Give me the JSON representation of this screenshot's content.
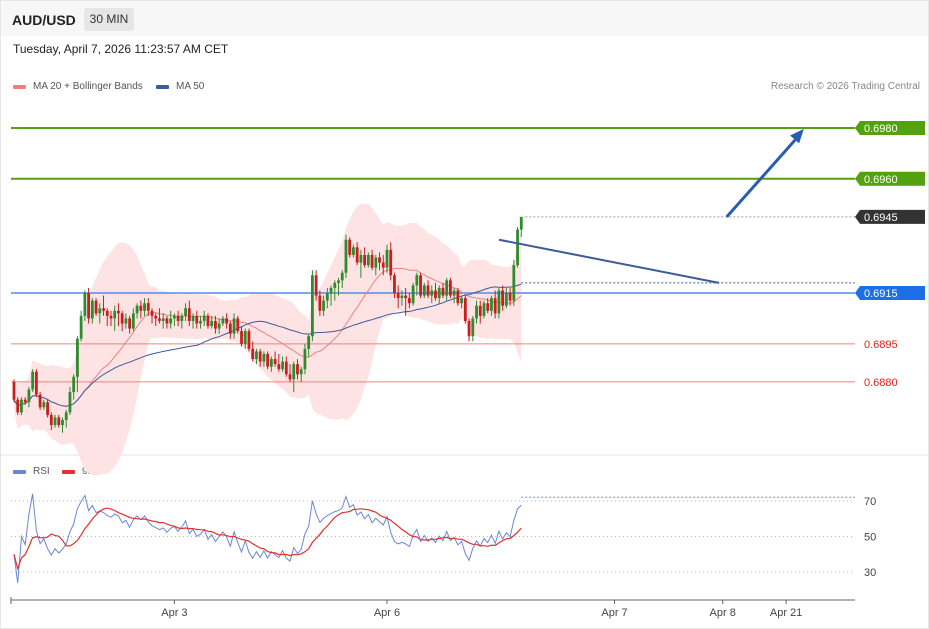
{
  "header": {
    "symbol": "AUD/USD",
    "timeframe": "30 MIN",
    "datetime": "Tuesday, April 7, 2026 11:23:57 AM CET"
  },
  "legend": {
    "bb_label": "MA 20 + Bollinger Bands",
    "ma50_label": "MA 50",
    "copyright": "Research © 2026 Trading Central"
  },
  "rsi_legend": {
    "rsi_label": "RSI",
    "ma_label": "9MA"
  },
  "colors": {
    "bb_fill": "#fde3e3",
    "ma20": "#f08080",
    "ma50": "#3d5a99",
    "up": "#2e8b2e",
    "down": "#c81e1e",
    "resistance": "#54a10f",
    "pivot": "#4b8df0",
    "support": "#f08080",
    "arrow": "#2a5db0",
    "last": "#333333",
    "rsi": "#6b86d6",
    "rsi_ma": "#e03030"
  },
  "chart_data": [
    {
      "type": "candlestick",
      "title": "AUD/USD",
      "timeframe": "30 MIN",
      "y_range": [
        0.6852,
        0.6993
      ],
      "x_tick_labels": [
        {
          "label": "Apr 3",
          "bar": 43
        },
        {
          "label": "Apr 6",
          "bar": 100
        },
        {
          "label": "Apr 7",
          "bar": 161
        },
        {
          "label": "Apr 8",
          "bar": 190
        },
        {
          "label": "Apr 21",
          "bar": 207
        }
      ],
      "levels": [
        {
          "value": 0.698,
          "label": "0.6980",
          "role": "resistance"
        },
        {
          "value": 0.696,
          "label": "0.6960",
          "role": "resistance"
        },
        {
          "value": 0.6945,
          "label": "0.6945",
          "role": "last"
        },
        {
          "value": 0.6915,
          "label": "0.6915",
          "role": "pivot"
        },
        {
          "value": 0.6895,
          "label": "0.6895",
          "role": "support"
        },
        {
          "value": 0.688,
          "label": "0.6880",
          "role": "support"
        }
      ],
      "trendline": {
        "from": [
          130,
          0.6936
        ],
        "to": [
          189,
          0.6919
        ]
      },
      "projection_arrow": {
        "from": [
          190,
          0.6945
        ],
        "to": [
          208,
          0.6982
        ]
      },
      "ohlc": [
        [
          0.688,
          0.6881,
          0.6872,
          0.6873
        ],
        [
          0.6873,
          0.6874,
          0.6867,
          0.6868
        ],
        [
          0.6868,
          0.6874,
          0.6867,
          0.6873
        ],
        [
          0.6873,
          0.6874,
          0.6871,
          0.6872
        ],
        [
          0.6872,
          0.6878,
          0.687,
          0.6877
        ],
        [
          0.6877,
          0.6885,
          0.6876,
          0.6884
        ],
        [
          0.6884,
          0.6885,
          0.6874,
          0.6875
        ],
        [
          0.6875,
          0.6876,
          0.6869,
          0.687
        ],
        [
          0.687,
          0.6873,
          0.6869,
          0.6872
        ],
        [
          0.6872,
          0.6873,
          0.6866,
          0.6867
        ],
        [
          0.6867,
          0.6868,
          0.6861,
          0.6863
        ],
        [
          0.6863,
          0.6867,
          0.6862,
          0.6866
        ],
        [
          0.6866,
          0.6867,
          0.6862,
          0.6863
        ],
        [
          0.6863,
          0.6866,
          0.686,
          0.6865
        ],
        [
          0.6865,
          0.6869,
          0.6862,
          0.6868
        ],
        [
          0.6868,
          0.6878,
          0.6867,
          0.6876
        ],
        [
          0.6876,
          0.6883,
          0.6873,
          0.6882
        ],
        [
          0.6882,
          0.6898,
          0.6876,
          0.6897
        ],
        [
          0.6897,
          0.6908,
          0.6896,
          0.6906
        ],
        [
          0.6906,
          0.6916,
          0.6904,
          0.6915
        ],
        [
          0.6915,
          0.6917,
          0.6903,
          0.6905
        ],
        [
          0.6905,
          0.6913,
          0.6903,
          0.6912
        ],
        [
          0.6912,
          0.6913,
          0.6906,
          0.6907
        ],
        [
          0.6907,
          0.6911,
          0.6903,
          0.6909
        ],
        [
          0.6909,
          0.6914,
          0.6906,
          0.6908
        ],
        [
          0.6908,
          0.6909,
          0.6902,
          0.6906
        ],
        [
          0.6906,
          0.6908,
          0.6902,
          0.6905
        ],
        [
          0.6905,
          0.691,
          0.69,
          0.6908
        ],
        [
          0.6908,
          0.6911,
          0.6902,
          0.6907
        ],
        [
          0.6907,
          0.6908,
          0.69,
          0.6903
        ],
        [
          0.6903,
          0.6907,
          0.6901,
          0.6905
        ],
        [
          0.6905,
          0.6906,
          0.6899,
          0.6901
        ],
        [
          0.6901,
          0.6909,
          0.69,
          0.6907
        ],
        [
          0.6907,
          0.6911,
          0.6905,
          0.691
        ],
        [
          0.691,
          0.6912,
          0.6905,
          0.6908
        ],
        [
          0.6908,
          0.6913,
          0.6906,
          0.6911
        ],
        [
          0.6911,
          0.6913,
          0.6906,
          0.6908
        ],
        [
          0.6908,
          0.6909,
          0.6903,
          0.6906
        ],
        [
          0.6906,
          0.6907,
          0.6902,
          0.6905
        ],
        [
          0.6905,
          0.6909,
          0.6903,
          0.6904
        ],
        [
          0.6904,
          0.6907,
          0.6901,
          0.6905
        ],
        [
          0.6905,
          0.6906,
          0.6901,
          0.6903
        ],
        [
          0.6903,
          0.6908,
          0.6901,
          0.6905
        ],
        [
          0.6905,
          0.6907,
          0.6902,
          0.6906
        ],
        [
          0.6906,
          0.6908,
          0.6902,
          0.6904
        ],
        [
          0.6904,
          0.6907,
          0.6901,
          0.6906
        ],
        [
          0.6906,
          0.6911,
          0.6904,
          0.6909
        ],
        [
          0.6909,
          0.6912,
          0.6902,
          0.6904
        ],
        [
          0.6904,
          0.6907,
          0.6901,
          0.6906
        ],
        [
          0.6906,
          0.6908,
          0.6901,
          0.6903
        ],
        [
          0.6903,
          0.6906,
          0.6901,
          0.6904
        ],
        [
          0.6904,
          0.6908,
          0.6902,
          0.6906
        ],
        [
          0.6906,
          0.6907,
          0.6901,
          0.6902
        ],
        [
          0.6902,
          0.6906,
          0.6901,
          0.6904
        ],
        [
          0.6904,
          0.6906,
          0.6899,
          0.6901
        ],
        [
          0.6901,
          0.6905,
          0.6899,
          0.6903
        ],
        [
          0.6903,
          0.6906,
          0.6902,
          0.6905
        ],
        [
          0.6905,
          0.6907,
          0.6901,
          0.6903
        ],
        [
          0.6903,
          0.6904,
          0.6897,
          0.6899
        ],
        [
          0.6899,
          0.6907,
          0.6897,
          0.6905
        ],
        [
          0.6905,
          0.6906,
          0.6899,
          0.69
        ],
        [
          0.69,
          0.6902,
          0.6894,
          0.6895
        ],
        [
          0.6895,
          0.6901,
          0.6893,
          0.69
        ],
        [
          0.69,
          0.6901,
          0.6892,
          0.6893
        ],
        [
          0.6893,
          0.6896,
          0.6888,
          0.6889
        ],
        [
          0.6889,
          0.6893,
          0.6887,
          0.6892
        ],
        [
          0.6892,
          0.6893,
          0.6886,
          0.6888
        ],
        [
          0.6888,
          0.6892,
          0.6886,
          0.6891
        ],
        [
          0.6891,
          0.6892,
          0.6885,
          0.6886
        ],
        [
          0.6886,
          0.689,
          0.6884,
          0.6889
        ],
        [
          0.6889,
          0.6892,
          0.6886,
          0.6887
        ],
        [
          0.6887,
          0.6891,
          0.6884,
          0.6885
        ],
        [
          0.6885,
          0.689,
          0.6884,
          0.6888
        ],
        [
          0.6888,
          0.689,
          0.6882,
          0.6883
        ],
        [
          0.6883,
          0.6887,
          0.688,
          0.6881
        ],
        [
          0.6881,
          0.6888,
          0.6876,
          0.6887
        ],
        [
          0.6887,
          0.6889,
          0.6881,
          0.6883
        ],
        [
          0.6883,
          0.6886,
          0.688,
          0.6885
        ],
        [
          0.6885,
          0.6895,
          0.6883,
          0.6893
        ],
        [
          0.6893,
          0.6899,
          0.689,
          0.6898
        ],
        [
          0.6898,
          0.6924,
          0.6896,
          0.6922
        ],
        [
          0.6922,
          0.6924,
          0.6912,
          0.6914
        ],
        [
          0.6914,
          0.6916,
          0.6906,
          0.6908
        ],
        [
          0.6908,
          0.6914,
          0.6906,
          0.6912
        ],
        [
          0.6912,
          0.6917,
          0.6909,
          0.6915
        ],
        [
          0.6915,
          0.6918,
          0.691,
          0.6917
        ],
        [
          0.6917,
          0.692,
          0.6912,
          0.6919
        ],
        [
          0.6919,
          0.6921,
          0.6914,
          0.692
        ],
        [
          0.692,
          0.6924,
          0.6917,
          0.6923
        ],
        [
          0.6923,
          0.6938,
          0.6921,
          0.6936
        ],
        [
          0.6936,
          0.6937,
          0.6929,
          0.693
        ],
        [
          0.693,
          0.6934,
          0.6929,
          0.6933
        ],
        [
          0.6933,
          0.6935,
          0.6926,
          0.6927
        ],
        [
          0.6927,
          0.6932,
          0.6921,
          0.693
        ],
        [
          0.693,
          0.6933,
          0.6925,
          0.6926
        ],
        [
          0.6926,
          0.6931,
          0.6925,
          0.693
        ],
        [
          0.693,
          0.6932,
          0.6924,
          0.6925
        ],
        [
          0.6925,
          0.693,
          0.6922,
          0.6929
        ],
        [
          0.6929,
          0.6931,
          0.6924,
          0.6927
        ],
        [
          0.6927,
          0.693,
          0.6922,
          0.6925
        ],
        [
          0.6925,
          0.6934,
          0.6923,
          0.6932
        ],
        [
          0.6932,
          0.6935,
          0.692,
          0.6922
        ],
        [
          0.6922,
          0.6923,
          0.6913,
          0.6915
        ],
        [
          0.6915,
          0.6918,
          0.6909,
          0.6913
        ],
        [
          0.6913,
          0.6916,
          0.691,
          0.6914
        ],
        [
          0.6914,
          0.6917,
          0.6906,
          0.6913
        ],
        [
          0.6913,
          0.6915,
          0.6909,
          0.6911
        ],
        [
          0.6911,
          0.6919,
          0.691,
          0.6918
        ],
        [
          0.6918,
          0.6923,
          0.6914,
          0.6922
        ],
        [
          0.6922,
          0.6923,
          0.6913,
          0.6914
        ],
        [
          0.6914,
          0.6919,
          0.6913,
          0.6918
        ],
        [
          0.6918,
          0.692,
          0.6913,
          0.6914
        ],
        [
          0.6914,
          0.6918,
          0.6911,
          0.6916
        ],
        [
          0.6916,
          0.6919,
          0.6912,
          0.6913
        ],
        [
          0.6913,
          0.6918,
          0.6911,
          0.6917
        ],
        [
          0.6917,
          0.6919,
          0.6913,
          0.6914
        ],
        [
          0.6914,
          0.6921,
          0.6912,
          0.692
        ],
        [
          0.692,
          0.6921,
          0.6913,
          0.6914
        ],
        [
          0.6914,
          0.6917,
          0.6911,
          0.6916
        ],
        [
          0.6916,
          0.6917,
          0.691,
          0.6911
        ],
        [
          0.6911,
          0.6914,
          0.6909,
          0.6913
        ],
        [
          0.6913,
          0.6914,
          0.6903,
          0.6904
        ],
        [
          0.6904,
          0.6905,
          0.6896,
          0.6898
        ],
        [
          0.6898,
          0.6906,
          0.6896,
          0.6905
        ],
        [
          0.6905,
          0.6912,
          0.6903,
          0.691
        ],
        [
          0.691,
          0.6912,
          0.6903,
          0.6906
        ],
        [
          0.6906,
          0.6912,
          0.6905,
          0.6911
        ],
        [
          0.6911,
          0.6913,
          0.6907,
          0.6908
        ],
        [
          0.6908,
          0.6914,
          0.6906,
          0.6913
        ],
        [
          0.6913,
          0.6916,
          0.6905,
          0.6907
        ],
        [
          0.6907,
          0.6917,
          0.6905,
          0.6916
        ],
        [
          0.6916,
          0.6918,
          0.6908,
          0.691
        ],
        [
          0.691,
          0.6917,
          0.6909,
          0.6915
        ],
        [
          0.6915,
          0.6917,
          0.691,
          0.6912
        ],
        [
          0.6912,
          0.6928,
          0.691,
          0.6926
        ],
        [
          0.6926,
          0.6941,
          0.6925,
          0.694
        ],
        [
          0.694,
          0.6945,
          0.6937,
          0.6945
        ]
      ],
      "series": [
        {
          "name": "MA 20 + Bollinger Bands",
          "role": "ma20"
        },
        {
          "name": "MA 50",
          "role": "ma50"
        }
      ]
    },
    {
      "type": "line",
      "panel": "RSI",
      "y_range": [
        20,
        80
      ],
      "y_ticks": [
        30,
        50,
        70
      ],
      "series": [
        {
          "name": "RSI",
          "role": "rsi"
        },
        {
          "name": "9MA",
          "role": "rsi_ma"
        }
      ],
      "last_rsi": 72
    }
  ]
}
